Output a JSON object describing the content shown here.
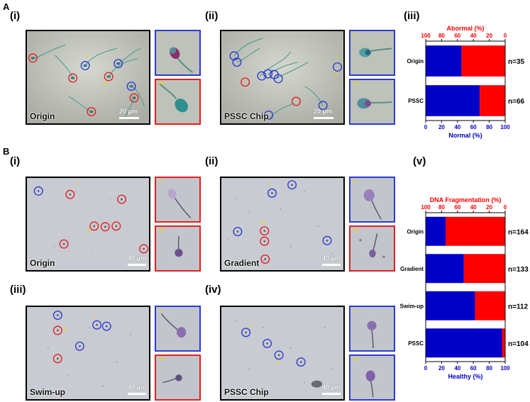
{
  "panels": {
    "A": "A",
    "B": "B"
  },
  "A_sub": {
    "i": "(i)",
    "ii": "(ii)",
    "iii": "(iii)"
  },
  "B_sub": {
    "i": "(i)",
    "ii": "(ii)",
    "iii": "(iii)",
    "iv": "(iv)",
    "v": "(v)"
  },
  "images": {
    "A_i": {
      "caption": "Origin",
      "scale": "20 μm"
    },
    "A_ii": {
      "caption": "PSSC Chip",
      "scale": "20 μm"
    },
    "B_i": {
      "caption": "Origin",
      "scale": "40 μm"
    },
    "B_ii": {
      "caption": "Gradient",
      "scale": "40 μm"
    },
    "B_iii": {
      "caption": "Swim-up",
      "scale": "40 μm"
    },
    "B_iv": {
      "caption": "PSSC Chip",
      "scale": "40 μm"
    }
  },
  "insets": {
    "single": "*",
    "double": "**"
  },
  "colors": {
    "normal_blue": "#0000c8",
    "abnormal_red": "#ff0000",
    "circle_blue": "#2b3bd1",
    "circle_red": "#e02020",
    "star_yellow": "#e8d400"
  },
  "chart_data": [
    {
      "type": "bar",
      "orientation": "horizontal-stacked",
      "categories": [
        "Origin",
        "PSSC"
      ],
      "series": [
        {
          "name": "Normal (%)",
          "values": [
            45,
            68
          ],
          "color": "#0000c8"
        },
        {
          "name": "Abormal (%)",
          "values": [
            55,
            32
          ],
          "color": "#ff0000"
        }
      ],
      "annotations": [
        "n=35",
        "n=66"
      ],
      "title": "Abormal (%)",
      "xlabel": "Normal (%)",
      "xlim": [
        0,
        100
      ],
      "bottom_ticks": [
        "0",
        "20",
        "40",
        "60",
        "80",
        "100"
      ],
      "top_ticks": [
        "100",
        "80",
        "60",
        "40",
        "20",
        "0"
      ],
      "grid": false
    },
    {
      "type": "bar",
      "orientation": "horizontal-stacked",
      "categories": [
        "Origin",
        "Gradient",
        "Swim-up",
        "PSSC"
      ],
      "series": [
        {
          "name": "Healthy (%)",
          "values": [
            25,
            48,
            62,
            96
          ],
          "color": "#0000c8"
        },
        {
          "name": "DNA Fragmentation (%)",
          "values": [
            75,
            52,
            38,
            4
          ],
          "color": "#ff0000"
        }
      ],
      "annotations": [
        "n=164",
        "n=133",
        "n=112",
        "n=104"
      ],
      "title": "DNA Fragmentation (%)",
      "xlabel": "Healthy (%)",
      "xlim": [
        0,
        100
      ],
      "bottom_ticks": [
        "0",
        "20",
        "40",
        "60",
        "80",
        "100"
      ],
      "top_ticks": [
        "100",
        "80",
        "60",
        "40",
        "20",
        "0"
      ],
      "grid": false
    }
  ]
}
